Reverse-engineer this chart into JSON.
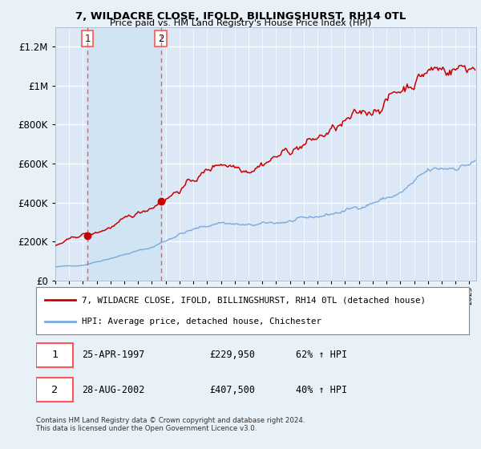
{
  "title": "7, WILDACRE CLOSE, IFOLD, BILLINGSHURST, RH14 0TL",
  "subtitle": "Price paid vs. HM Land Registry's House Price Index (HPI)",
  "red_label": "7, WILDACRE CLOSE, IFOLD, BILLINGSHURST, RH14 0TL (detached house)",
  "blue_label": "HPI: Average price, detached house, Chichester",
  "transaction1": {
    "num": "1",
    "date": "25-APR-1997",
    "price": "£229,950",
    "change": "62% ↑ HPI"
  },
  "transaction2": {
    "num": "2",
    "date": "28-AUG-2002",
    "price": "£407,500",
    "change": "40% ↑ HPI"
  },
  "footnote": "Contains HM Land Registry data © Crown copyright and database right 2024.\nThis data is licensed under the Open Government Licence v3.0.",
  "vline1_year": 1997.32,
  "vline2_year": 2002.65,
  "dot1_year": 1997.32,
  "dot1_value": 229950,
  "dot2_year": 2002.65,
  "dot2_value": 407500,
  "xlim": [
    1995.0,
    2025.5
  ],
  "ylim": [
    0,
    1300000
  ],
  "yticks": [
    0,
    200000,
    400000,
    600000,
    800000,
    1000000,
    1200000
  ],
  "ytick_labels": [
    "£0",
    "£200K",
    "£400K",
    "£600K",
    "£800K",
    "£1M",
    "£1.2M"
  ],
  "bg_color": "#e8f0f8",
  "plot_bg": "#dce8f5",
  "grid_color": "#c8d8e8",
  "shading_color": "#d0e4f4",
  "red_color": "#cc0000",
  "blue_color": "#7aaadd",
  "vline_color": "#ff5555"
}
